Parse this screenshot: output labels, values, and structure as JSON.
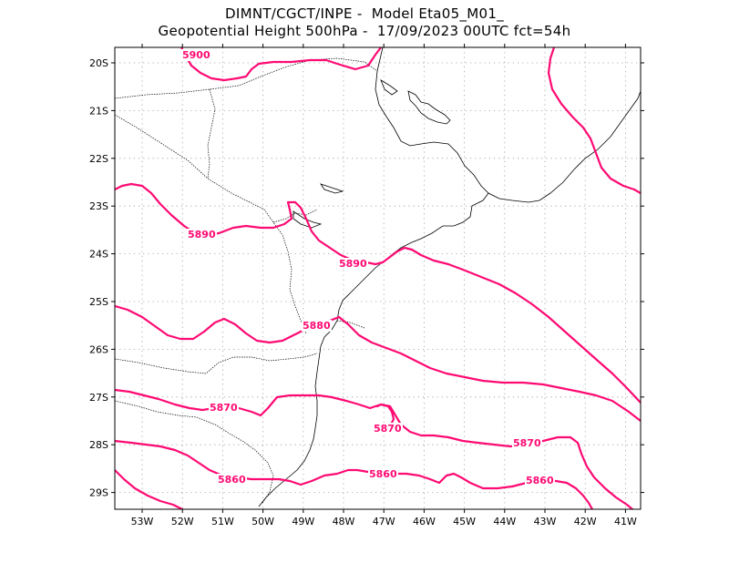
{
  "title": {
    "line1": "DIMNT/CGCT/INPE -  Model Eta05_M01_",
    "line2": "Geopotential Height 500hPa -  17/09/2023 00UTC fct=54h"
  },
  "axes": {
    "lat_labels": [
      "20S",
      "21S",
      "22S",
      "23S",
      "24S",
      "25S",
      "26S",
      "27S",
      "28S",
      "29S"
    ],
    "lon_labels": [
      "53W",
      "52W",
      "51W",
      "50W",
      "49W",
      "48W",
      "47W",
      "46W",
      "45W",
      "44W",
      "43W",
      "42W",
      "41W"
    ]
  },
  "contour_labels": [
    "5900",
    "5890",
    "5890",
    "5880",
    "5870",
    "5870",
    "5870",
    "5860",
    "5860",
    "5860"
  ],
  "colors": {
    "contour": "#ff0a73",
    "coastline": "#000000",
    "grid": "#999999"
  },
  "chart_data": {
    "type": "contour",
    "variable": "Geopotential Height 500hPa",
    "contour_levels": [
      5860,
      5870,
      5880,
      5890,
      5900
    ],
    "lon_range": [
      -53.6,
      -40.5
    ],
    "lat_range": [
      -29.4,
      -19.6
    ],
    "grid": true
  }
}
